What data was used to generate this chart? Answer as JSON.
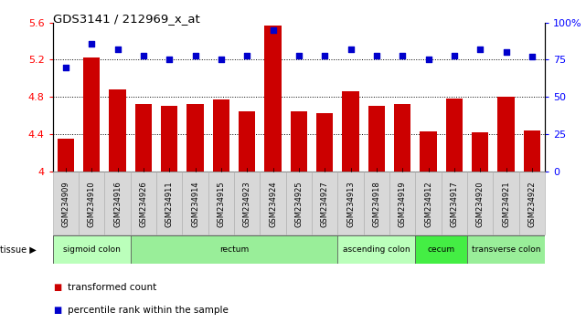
{
  "title": "GDS3141 / 212969_x_at",
  "samples": [
    "GSM234909",
    "GSM234910",
    "GSM234916",
    "GSM234926",
    "GSM234911",
    "GSM234914",
    "GSM234915",
    "GSM234923",
    "GSM234924",
    "GSM234925",
    "GSM234927",
    "GSM234913",
    "GSM234918",
    "GSM234919",
    "GSM234912",
    "GSM234917",
    "GSM234920",
    "GSM234921",
    "GSM234922"
  ],
  "bar_values": [
    4.35,
    5.22,
    4.88,
    4.72,
    4.7,
    4.72,
    4.77,
    4.64,
    5.57,
    4.64,
    4.63,
    4.86,
    4.7,
    4.72,
    4.43,
    4.78,
    4.42,
    4.8,
    4.44
  ],
  "dot_values": [
    70,
    86,
    82,
    78,
    75,
    78,
    75,
    78,
    95,
    78,
    78,
    82,
    78,
    78,
    75,
    78,
    82,
    80,
    77
  ],
  "ylim_left": [
    4.0,
    5.6
  ],
  "ylim_right": [
    0,
    100
  ],
  "yticks_left": [
    4.0,
    4.4,
    4.8,
    5.2,
    5.6
  ],
  "ytick_labels_left": [
    "4",
    "4.4",
    "4.8",
    "5.2",
    "5.6"
  ],
  "yticks_right": [
    0,
    25,
    50,
    75,
    100
  ],
  "ytick_labels_right": [
    "0",
    "25",
    "50",
    "75",
    "100%"
  ],
  "grid_lines": [
    4.4,
    4.8,
    5.2
  ],
  "bar_color": "#cc0000",
  "dot_color": "#0000cc",
  "tissue_groups": [
    {
      "label": "sigmoid colon",
      "start": 0,
      "end": 3,
      "color": "#bbffbb"
    },
    {
      "label": "rectum",
      "start": 3,
      "end": 11,
      "color": "#99ee99"
    },
    {
      "label": "ascending colon",
      "start": 11,
      "end": 14,
      "color": "#bbffbb"
    },
    {
      "label": "cecum",
      "start": 14,
      "end": 16,
      "color": "#44ee44"
    },
    {
      "label": "transverse colon",
      "start": 16,
      "end": 19,
      "color": "#99ee99"
    }
  ],
  "legend_bar_label": "transformed count",
  "legend_dot_label": "percentile rank within the sample",
  "tissue_label": "tissue",
  "xtick_bg": "#d8d8d8"
}
